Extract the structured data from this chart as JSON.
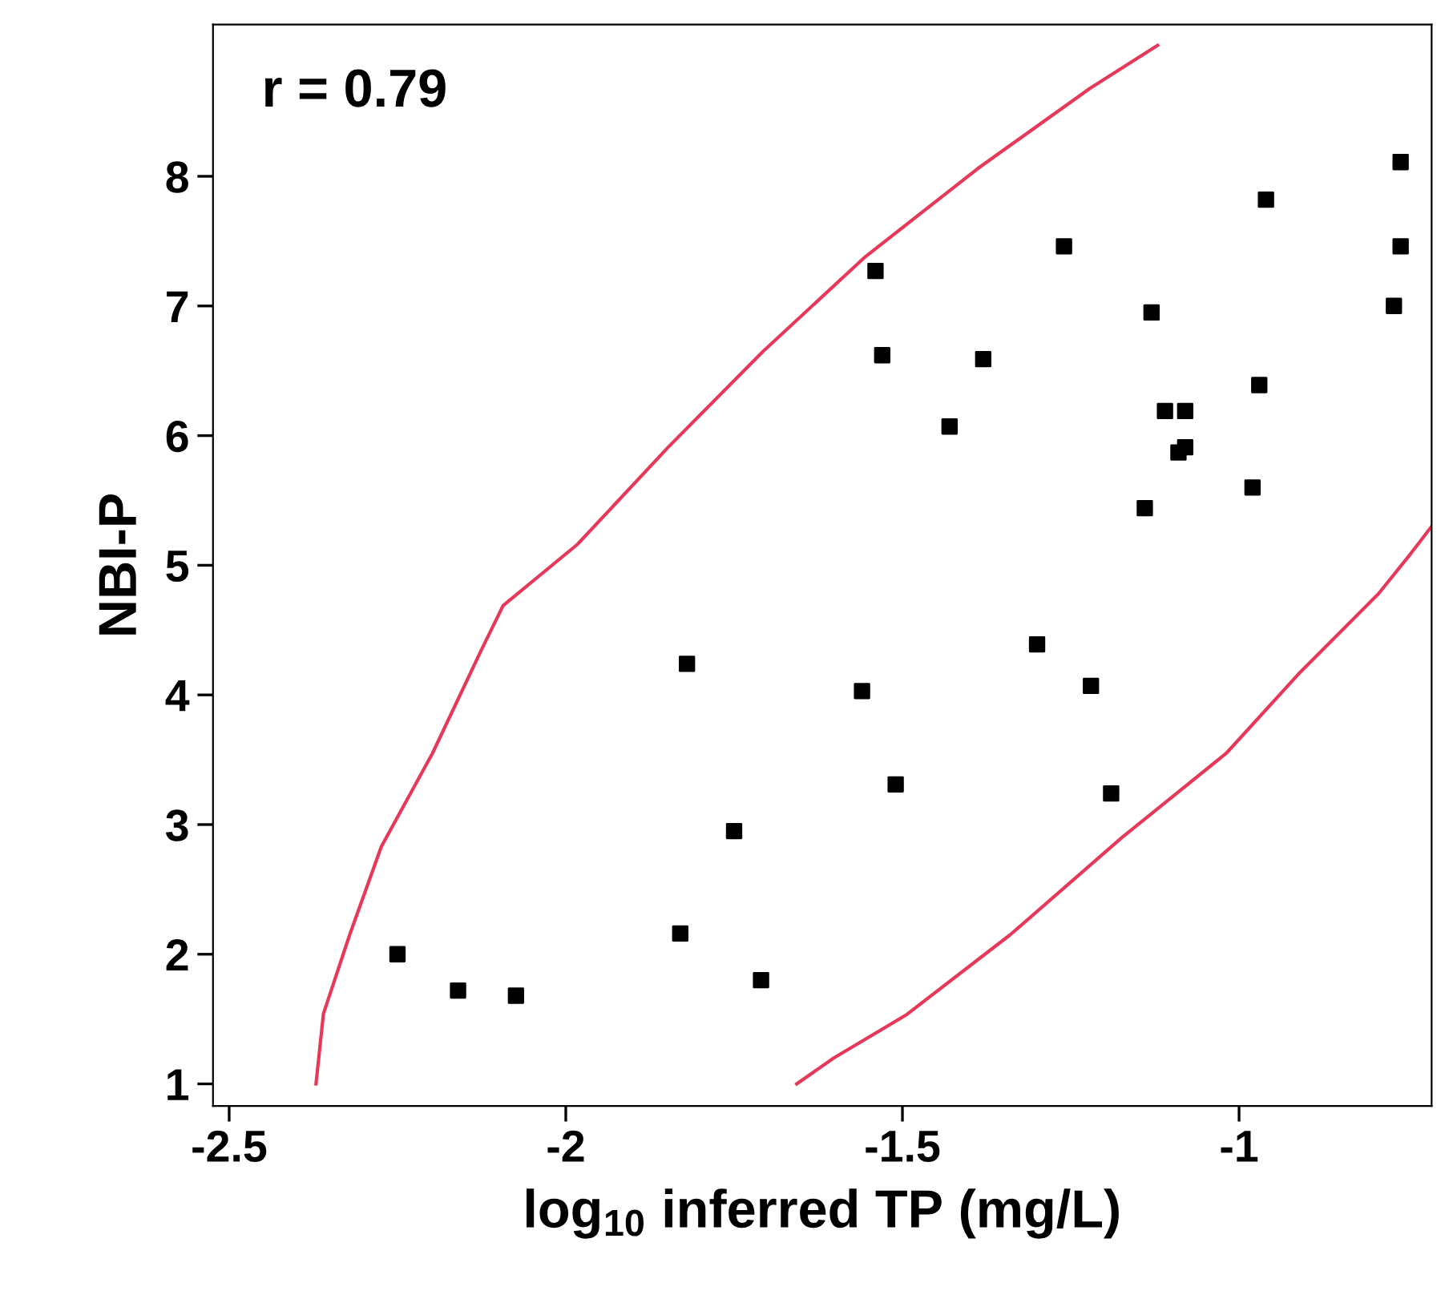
{
  "chart_data": {
    "type": "scatter",
    "xlabel": "log$_{10}$ inferred TP (mg/L)",
    "ylabel": "NBI-P",
    "annotations": [
      "r = 0.79"
    ],
    "xlim": [
      -2.524,
      -0.714
    ],
    "ylim": [
      0.83,
      9.17
    ],
    "xticks": [
      -2.5,
      -2,
      -1.5,
      -1
    ],
    "yticks": [
      1,
      2,
      3,
      4,
      5,
      6,
      7,
      8
    ],
    "series": [
      {
        "color": "#000000",
        "marker": "square",
        "x": [
          -2.25,
          -2.16,
          -2.074,
          -1.83,
          -1.82,
          -1.75,
          -1.71,
          -1.56,
          -1.54,
          -1.53,
          -1.51,
          -1.43,
          -1.38,
          -1.3,
          -1.26,
          -1.22,
          -1.19,
          -1.14,
          -1.13,
          -1.11,
          -1.09,
          -1.08,
          -1.08,
          -0.98,
          -0.97,
          -0.96,
          -0.77,
          -0.76,
          -0.76
        ],
        "values": [
          2.0,
          1.72,
          1.68,
          2.16,
          4.24,
          2.95,
          1.8,
          4.03,
          7.27,
          6.62,
          3.31,
          6.07,
          6.59,
          4.39,
          7.46,
          4.07,
          3.24,
          5.44,
          6.95,
          6.19,
          5.87,
          5.91,
          6.19,
          5.6,
          6.39,
          7.82,
          7.0,
          8.11,
          7.46
        ]
      },
      {
        "type": "line",
        "color": "#e8385a",
        "marker": "none",
        "x": [
          -2.371,
          -2.36,
          -2.321,
          -2.274,
          -2.198,
          -2.126,
          -2.093,
          -1.983,
          -1.848,
          -1.707,
          -1.555,
          -1.388,
          -1.221,
          -1.121
        ],
        "values": [
          1.0,
          1.54,
          2.15,
          2.83,
          3.55,
          4.34,
          4.69,
          5.16,
          5.91,
          6.65,
          7.38,
          8.06,
          8.68,
          9.01
        ]
      },
      {
        "type": "line",
        "color": "#e8385a",
        "marker": "none",
        "x": [
          -1.657,
          -1.602,
          -1.495,
          -1.34,
          -1.174,
          -1.019,
          -0.912,
          -0.793,
          -0.745,
          -0.714
        ],
        "values": [
          1.0,
          1.2,
          1.53,
          2.15,
          2.9,
          3.55,
          4.16,
          4.78,
          5.09,
          5.3
        ]
      }
    ]
  }
}
